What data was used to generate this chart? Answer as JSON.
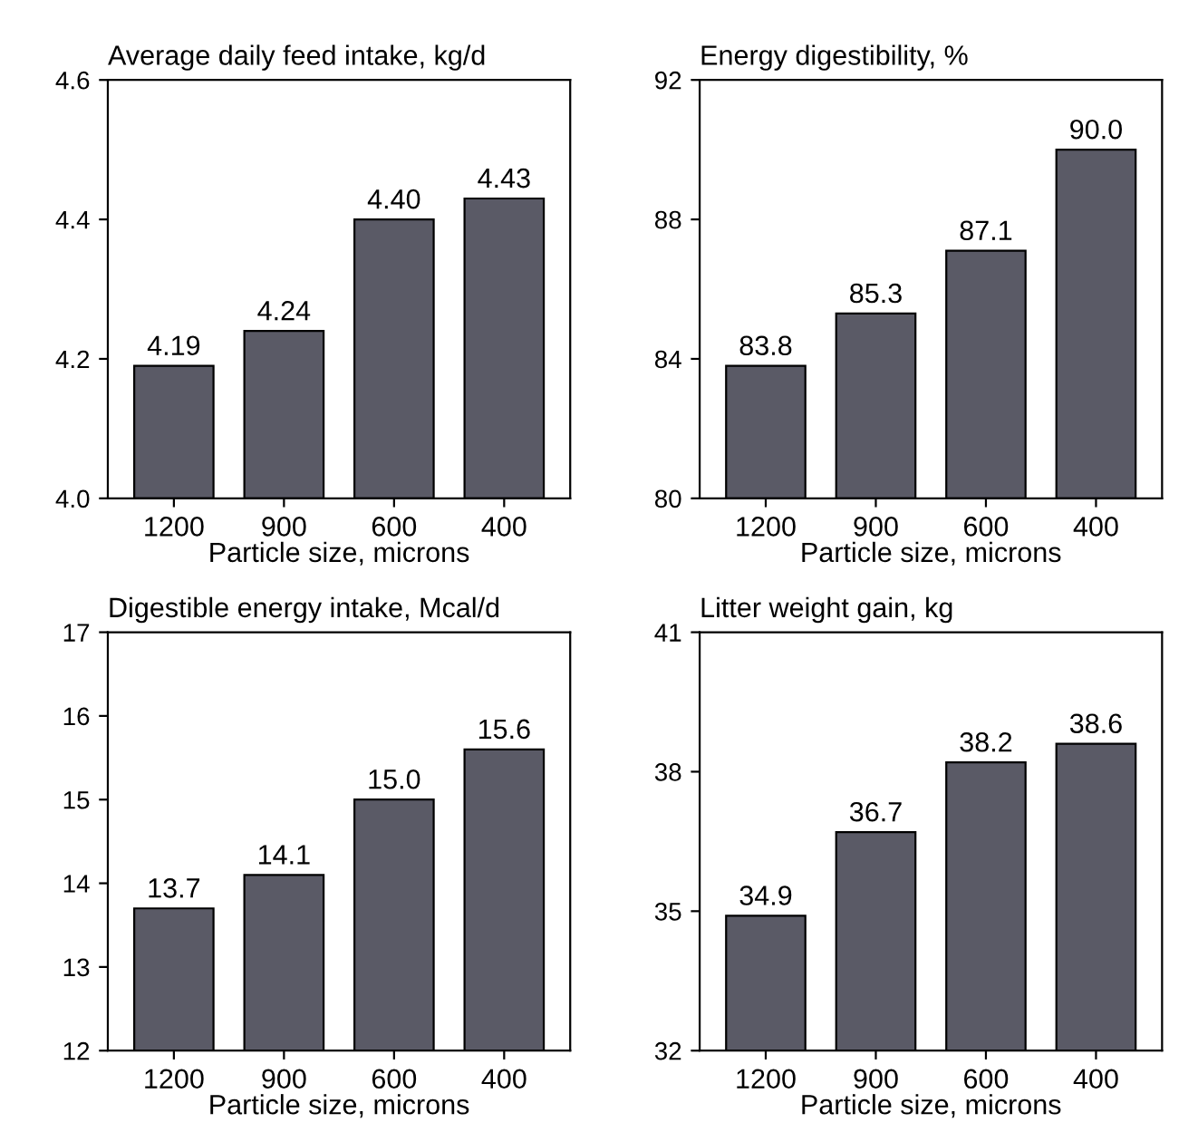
{
  "chart_data": [
    {
      "type": "bar",
      "title": "Average daily feed intake, kg/d",
      "xlabel": "Particle size, microns",
      "categories": [
        "1200",
        "900",
        "600",
        "400"
      ],
      "values": [
        4.19,
        4.24,
        4.4,
        4.43
      ],
      "value_labels": [
        "4.19",
        "4.24",
        "4.40",
        "4.43"
      ],
      "color": "#5a5a66",
      "ylim": [
        4.0,
        4.6
      ],
      "yticks": [
        {
          "value": 4.0,
          "label": "4.0"
        },
        {
          "value": 4.2,
          "label": "4.2"
        },
        {
          "value": 4.4,
          "label": "4.4"
        },
        {
          "value": 4.6,
          "label": "4.6"
        }
      ],
      "grid": false
    },
    {
      "type": "bar",
      "title": "Energy digestibility, %",
      "xlabel": "Particle size, microns",
      "categories": [
        "1200",
        "900",
        "600",
        "400"
      ],
      "values": [
        83.8,
        85.3,
        87.1,
        90.0
      ],
      "value_labels": [
        "83.8",
        "85.3",
        "87.1",
        "90.0"
      ],
      "color": "#5a5a66",
      "ylim": [
        80,
        92
      ],
      "yticks": [
        80,
        84,
        88,
        92
      ],
      "grid": false
    },
    {
      "type": "bar",
      "title": "Digestible energy intake, Mcal/d",
      "xlabel": "Particle size, microns",
      "categories": [
        "1200",
        "900",
        "600",
        "400"
      ],
      "values": [
        13.7,
        14.1,
        15.0,
        15.6
      ],
      "value_labels": [
        "13.7",
        "14.1",
        "15.0",
        "15.6"
      ],
      "color": "#5a5a66",
      "ylim": [
        12,
        17
      ],
      "yticks": [
        12,
        13,
        14,
        15,
        16,
        17
      ],
      "grid": false
    },
    {
      "type": "bar",
      "title": "Litter weight gain, kg",
      "xlabel": "Particle size, microns",
      "categories": [
        "1200",
        "900",
        "600",
        "400"
      ],
      "values": [
        34.9,
        36.7,
        38.2,
        38.6
      ],
      "value_labels": [
        "34.9",
        "36.7",
        "38.2",
        "38.6"
      ],
      "color": "#5a5a66",
      "ylim": [
        32,
        41
      ],
      "yticks": [
        32,
        35,
        38,
        41
      ],
      "grid": false
    }
  ]
}
